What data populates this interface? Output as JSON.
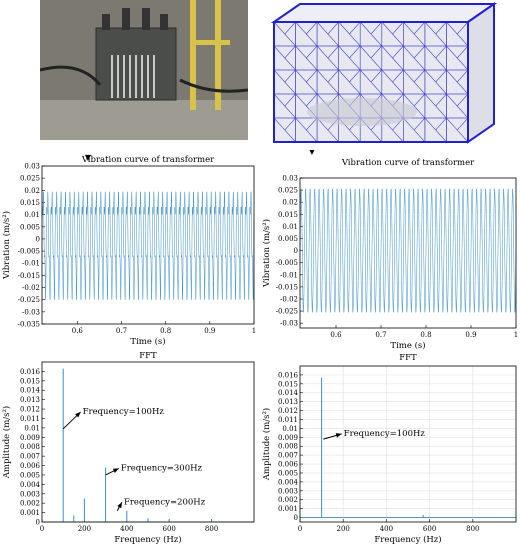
{
  "colors": {
    "series": "#3a8fc8",
    "axis": "#000000",
    "grid": "#e4e4e4",
    "mesh_edge": "#2222cc",
    "mesh_face": "#e8e8f0",
    "photo_bg": "#7c7a70"
  },
  "images": {
    "photo": "transformer-photo",
    "mesh": "finite-element-mesh"
  },
  "arrow_glyph": "▼",
  "chart_data": [
    {
      "type": "line",
      "title": "Vibration curve of transformer",
      "xlabel": "Time (s)",
      "ylabel": "Vibration (m/s²)",
      "xlim": [
        0.52,
        1.0
      ],
      "ylim": [
        -0.035,
        0.03
      ],
      "xticks": [
        "0.6",
        "0.7",
        "0.8",
        "0.9",
        "1"
      ],
      "yticks": [
        "0.03",
        "0.025",
        "0.02",
        "0.015",
        "0.01",
        "0.005",
        "0",
        "-0.005",
        "-0.01",
        "-0.015",
        "-0.02",
        "-0.025",
        "-0.03",
        "-0.035"
      ],
      "grid": false,
      "signal": {
        "fundamental_hz": 100,
        "harmonics": [
          {
            "hz": 100,
            "amplitude": 0.016
          },
          {
            "hz": 200,
            "amplitude": 0.0025
          },
          {
            "hz": 300,
            "amplitude": 0.0058
          }
        ],
        "peak": 0.025
      }
    },
    {
      "type": "line",
      "title": "Vibration curve of transformer",
      "xlabel": "Time (s)",
      "ylabel": "Vibration (m/s²)",
      "xlim": [
        0.52,
        1.0
      ],
      "ylim": [
        -0.032,
        0.03
      ],
      "xticks": [
        "0.6",
        "0.7",
        "0.8",
        "0.9",
        "1"
      ],
      "yticks": [
        "0.03",
        "0.025",
        "0.02",
        "0.015",
        "0.01",
        "0.005",
        "0",
        "-0.005",
        "-0.01",
        "-0.015",
        "-0.02",
        "-0.025",
        "-0.03"
      ],
      "grid": false,
      "signal": {
        "fundamental_hz": 100,
        "harmonics": [
          {
            "hz": 100,
            "amplitude": 0.0157
          }
        ],
        "peak": 0.0255
      }
    },
    {
      "type": "line",
      "title": "FFT",
      "xlabel": "Frequency (Hz)",
      "ylabel": "Amplitude (m/s²)",
      "xlim": [
        0,
        1000
      ],
      "ylim": [
        0,
        0.017
      ],
      "xticks": [
        "0",
        "200",
        "400",
        "600",
        "800"
      ],
      "yticks": [
        "0",
        "0.001",
        "0.002",
        "0.003",
        "0.004",
        "0.005",
        "0.006",
        "0.007",
        "0.008",
        "0.009",
        "0.01",
        "0.011",
        "0.012",
        "0.013",
        "0.014",
        "0.015",
        "0.016"
      ],
      "grid": false,
      "peaks": [
        {
          "x": 100,
          "y": 0.0163
        },
        {
          "x": 200,
          "y": 0.0025
        },
        {
          "x": 300,
          "y": 0.0058
        },
        {
          "x": 150,
          "y": 0.0007
        },
        {
          "x": 400,
          "y": 0.0012
        },
        {
          "x": 500,
          "y": 0.0004
        },
        {
          "x": 600,
          "y": 0.0003
        },
        {
          "x": 800,
          "y": 0.0002
        }
      ],
      "annotations": [
        {
          "text": "Frequency=100Hz",
          "x": 100,
          "y": 0.0099,
          "tx": 220,
          "ty": 0.0118
        },
        {
          "text": "Frequency=300Hz",
          "x": 300,
          "y": 0.005,
          "tx": 400,
          "ty": 0.0058
        },
        {
          "text": "Frequency=200Hz",
          "x": 355,
          "y": 0.0012,
          "tx": 415,
          "ty": 0.0022
        }
      ]
    },
    {
      "type": "line",
      "title": "FFT",
      "xlabel": "Frequency (Hz)",
      "ylabel": "Amplitude (m/s²)",
      "xlim": [
        0,
        1000
      ],
      "ylim": [
        -0.0005,
        0.017
      ],
      "xticks": [
        "0",
        "200",
        "400",
        "600",
        "800"
      ],
      "yticks": [
        "0",
        "0.001",
        "0.002",
        "0.003",
        "0.004",
        "0.005",
        "0.006",
        "0.007",
        "0.008",
        "0.009",
        "0.01",
        "0.011",
        "0.012",
        "0.013",
        "0.014",
        "0.015",
        "0.016"
      ],
      "grid": true,
      "peaks": [
        {
          "x": 100,
          "y": 0.0157
        },
        {
          "x": 570,
          "y": 0.0003
        }
      ],
      "annotations": [
        {
          "text": "Frequency=100Hz",
          "x": 108,
          "y": 0.0088,
          "tx": 230,
          "ty": 0.0095
        }
      ]
    }
  ]
}
